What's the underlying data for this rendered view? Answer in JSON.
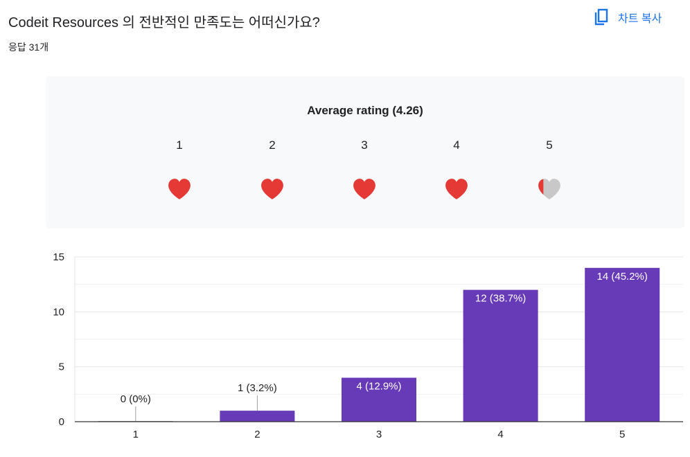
{
  "header": {
    "question_title": "Codeit Resources 의 전반적인 만족도는 어떠신가요?",
    "response_count": "응답 31개",
    "copy_chart_label": "차트 복사"
  },
  "rating": {
    "title": "Average rating (4.26)",
    "average": 4.26,
    "scale": [
      "1",
      "2",
      "3",
      "4",
      "5"
    ],
    "heart_color": "#e53935",
    "empty_color": "#c8c8c8"
  },
  "colors": {
    "bar": "#673ab7",
    "accent": "#1a73e8"
  },
  "chart_data": {
    "type": "bar",
    "categories": [
      "1",
      "2",
      "3",
      "4",
      "5"
    ],
    "values": [
      0,
      1,
      4,
      12,
      14
    ],
    "labels": [
      "0 (0%)",
      "1 (3.2%)",
      "4 (12.9%)",
      "12 (38.7%)",
      "14 (45.2%)"
    ],
    "yticks": [
      "0",
      "5",
      "10",
      "15"
    ],
    "ylim": [
      0,
      15
    ],
    "title": "",
    "xlabel": "",
    "ylabel": ""
  }
}
